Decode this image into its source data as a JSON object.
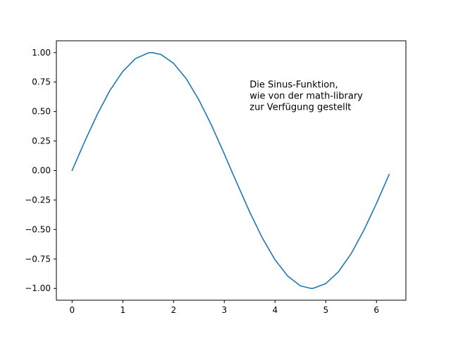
{
  "chart_data": {
    "type": "line",
    "title": "",
    "xlabel": "",
    "ylabel": "",
    "xlim": [
      -0.31,
      6.58
    ],
    "ylim": [
      -1.1,
      1.1
    ],
    "x_ticks": [
      0,
      1,
      2,
      3,
      4,
      5,
      6
    ],
    "x_tick_labels": [
      "0",
      "1",
      "2",
      "3",
      "4",
      "5",
      "6"
    ],
    "y_ticks": [
      1.0,
      0.75,
      0.5,
      0.25,
      0.0,
      -0.25,
      -0.5,
      -0.75,
      -1.0
    ],
    "y_tick_labels": [
      "1.00",
      "0.75",
      "0.50",
      "0.25",
      "0.00",
      "−0.25",
      "−0.50",
      "−0.75",
      "−1.00"
    ],
    "grid": false,
    "series": [
      {
        "color": "#1f77b4",
        "x": [
          0.0,
          0.25,
          0.5,
          0.75,
          1.0,
          1.25,
          1.5,
          1.57,
          1.75,
          2.0,
          2.25,
          2.5,
          2.75,
          3.0,
          3.14,
          3.25,
          3.5,
          3.75,
          4.0,
          4.25,
          4.5,
          4.71,
          4.75,
          5.0,
          5.25,
          5.5,
          5.75,
          6.0,
          6.25
        ],
        "y": [
          0.0,
          0.247,
          0.479,
          0.682,
          0.841,
          0.949,
          0.997,
          1.0,
          0.984,
          0.909,
          0.778,
          0.598,
          0.382,
          0.141,
          0.0,
          -0.108,
          -0.351,
          -0.572,
          -0.757,
          -0.895,
          -0.978,
          -1.0,
          -0.999,
          -0.959,
          -0.859,
          -0.706,
          -0.508,
          -0.279,
          -0.033
        ]
      }
    ],
    "annotations": [
      {
        "x": 3.5,
        "y": 0.5,
        "lines": [
          "Die Sinus-Funktion,",
          "wie von der math-library",
          "zur Verfügung gestellt"
        ]
      }
    ]
  }
}
